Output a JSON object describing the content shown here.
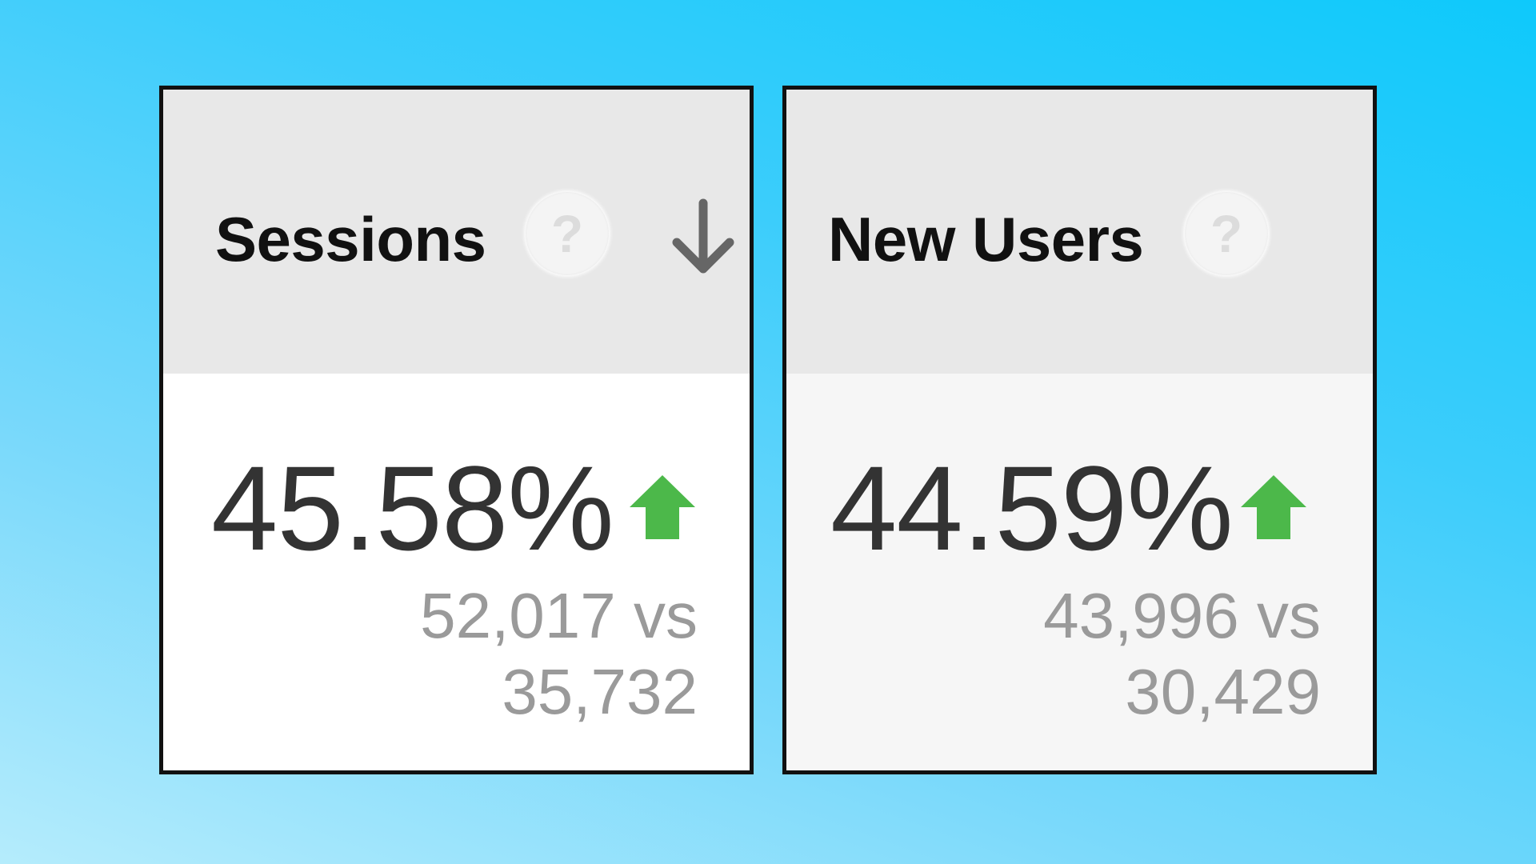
{
  "cards": [
    {
      "title": "Sessions",
      "help_icon": "help-question-icon",
      "help_glyph": "?",
      "sort_icon": "sort-arrow-down-icon",
      "percent": "45.58%",
      "trend": "up",
      "trend_icon": "trend-up-arrow-icon",
      "comparison_line1": "52,017 vs",
      "comparison_line2": "35,732"
    },
    {
      "title": "New Users",
      "help_icon": "help-question-icon",
      "help_glyph": "?",
      "percent": "44.59%",
      "trend": "up",
      "trend_icon": "trend-up-arrow-icon",
      "comparison_line1": "43,996 vs",
      "comparison_line2": "30,429"
    }
  ],
  "colors": {
    "trend_up": "#4cb84a",
    "header_background": "#e8e8e8",
    "card_border": "#111111",
    "percent_text": "#333333",
    "comparison_text": "#9a9a9a",
    "sort_icon": "#666666"
  }
}
